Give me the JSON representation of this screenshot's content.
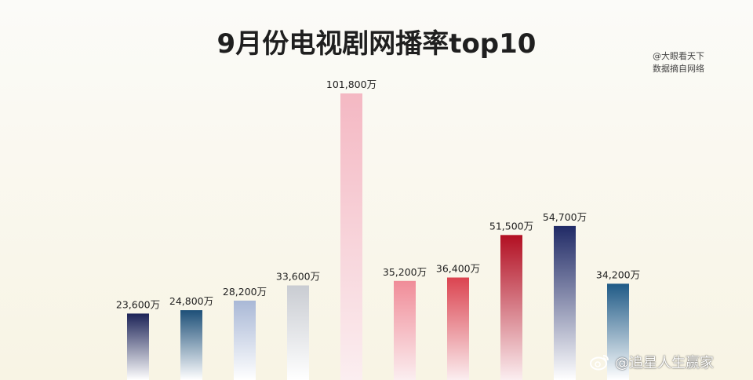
{
  "chart_data": {
    "type": "bar",
    "title": "9月份电视剧网播率top10",
    "categories": [
      "",
      "",
      "",
      "",
      "",
      "",
      "",
      "",
      "",
      ""
    ],
    "values": [
      23600,
      24800,
      28200,
      33600,
      101800,
      35200,
      36400,
      51500,
      54700,
      34200
    ],
    "value_labels": [
      "23,600万",
      "24,800万",
      "28,200万",
      "33,600万",
      "101,800万",
      "35,200万",
      "36,400万",
      "51,500万",
      "54,700万",
      "34,200万"
    ],
    "unit": "万",
    "ylim": [
      0,
      101800
    ],
    "grid": false,
    "legend": "none",
    "bar_colors": [
      [
        "#1c2357",
        "#ffffff"
      ],
      [
        "#1d4f78",
        "#ffffff"
      ],
      [
        "#a9b8d6",
        "#ffffff"
      ],
      [
        "#c9ccd2",
        "#ffffff"
      ],
      [
        "#f4b8c3",
        "#fbeef0"
      ],
      [
        "#f08c98",
        "#fbeef0"
      ],
      [
        "#db4450",
        "#fbeef0"
      ],
      [
        "#b20f22",
        "#fbeef0"
      ],
      [
        "#202a66",
        "#ffffff"
      ],
      [
        "#1f5a86",
        "#ffffff"
      ]
    ]
  },
  "source": {
    "line1": "@大眼看天下",
    "line2": "数据摘自网络"
  },
  "watermark": {
    "icon": "weibo-icon",
    "text": "@追星人生赢家"
  }
}
